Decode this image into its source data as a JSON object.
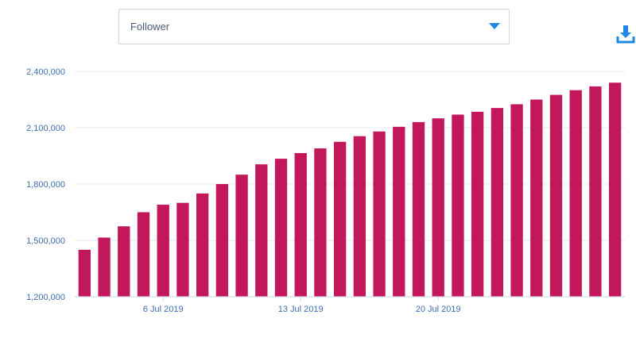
{
  "dropdown": {
    "selected": "Follower"
  },
  "icons": {
    "dropdown_caret": "caret-down-icon",
    "download": "download-icon"
  },
  "colors": {
    "bar": "#c2185b",
    "accent": "#1e88e5",
    "grid": "#e3ebf5",
    "tick_text": "#3d6fb3"
  },
  "chart_data": {
    "type": "bar",
    "title": "",
    "xlabel": "",
    "ylabel": "",
    "ylim": [
      1200000,
      2400000
    ],
    "y_ticks": [
      1200000,
      1500000,
      1800000,
      2100000,
      2400000
    ],
    "y_tick_labels": [
      "1,200,000",
      "1,500,000",
      "1,800,000",
      "2,100,000",
      "2,400,000"
    ],
    "x_tick_labels": [
      {
        "label": "6 Jul 2019",
        "date": "2019-07-06"
      },
      {
        "label": "13 Jul 2019",
        "date": "2019-07-13"
      },
      {
        "label": "20 Jul 2019",
        "date": "2019-07-20"
      }
    ],
    "grid": true,
    "legend": false,
    "x": [
      "2019-07-02",
      "2019-07-03",
      "2019-07-04",
      "2019-07-05",
      "2019-07-06",
      "2019-07-07",
      "2019-07-08",
      "2019-07-09",
      "2019-07-10",
      "2019-07-11",
      "2019-07-12",
      "2019-07-13",
      "2019-07-14",
      "2019-07-15",
      "2019-07-16",
      "2019-07-17",
      "2019-07-18",
      "2019-07-19",
      "2019-07-20",
      "2019-07-21",
      "2019-07-22",
      "2019-07-23",
      "2019-07-24",
      "2019-07-25",
      "2019-07-26",
      "2019-07-27",
      "2019-07-28",
      "2019-07-29"
    ],
    "series": [
      {
        "values": [
          1450000,
          1515000,
          1575000,
          1650000,
          1690000,
          1700000,
          1750000,
          1800000,
          1850000,
          1905000,
          1935000,
          1965000,
          1990000,
          2025000,
          2055000,
          2080000,
          2105000,
          2130000,
          2150000,
          2170000,
          2185000,
          2205000,
          2225000,
          2250000,
          2275000,
          2300000,
          2320000,
          2340000
        ]
      }
    ]
  }
}
